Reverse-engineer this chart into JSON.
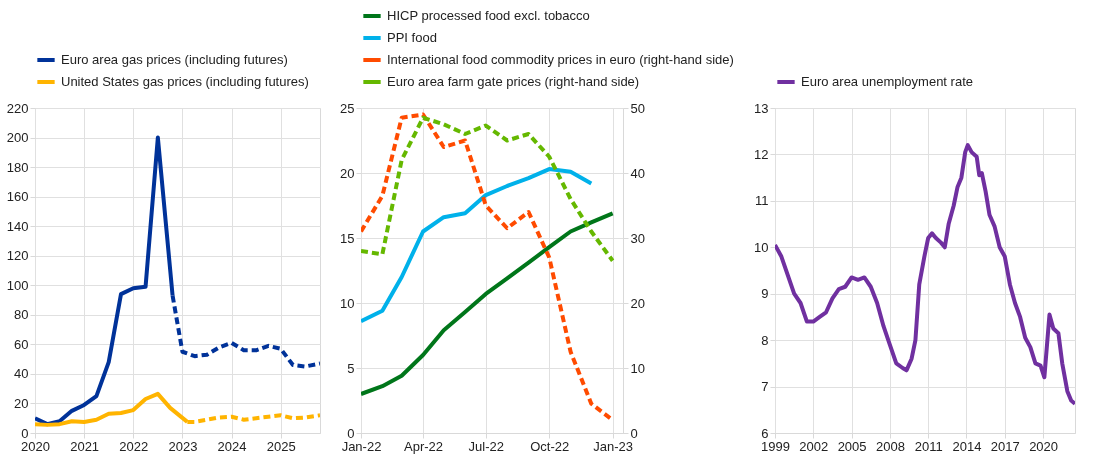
{
  "chart_data": [
    {
      "type": "line",
      "xlim": [
        2020,
        2025.8
      ],
      "xticks": [
        2020,
        2021,
        2022,
        2023,
        2024,
        2025
      ],
      "ylim": [
        0,
        220
      ],
      "yticks": [
        0,
        20,
        40,
        60,
        80,
        100,
        120,
        140,
        160,
        180,
        200,
        220
      ],
      "grid": true,
      "legend": "top",
      "series": [
        {
          "name": "Euro area gas prices (including futures)",
          "color": "#003299",
          "x": [
            2020,
            2020.25,
            2020.5,
            2020.75,
            2021,
            2021.25,
            2021.5,
            2021.75,
            2022,
            2022.25,
            2022.5,
            2022.8
          ],
          "values": [
            10,
            6,
            8,
            15,
            19,
            25,
            48,
            94,
            98,
            99,
            200,
            93
          ]
        },
        {
          "color": "#003299",
          "line_style": "dashed",
          "x": [
            2022.8,
            2023,
            2023.25,
            2023.5,
            2023.75,
            2024,
            2024.25,
            2024.5,
            2024.75,
            2025,
            2025.25,
            2025.5,
            2025.8
          ],
          "values": [
            93,
            55,
            52,
            53,
            58,
            61,
            56,
            56,
            59,
            57,
            46,
            45,
            47
          ]
        },
        {
          "name": "United States gas prices (including futures)",
          "color": "#ffb400",
          "x": [
            2020,
            2020.25,
            2020.5,
            2020.75,
            2021,
            2021.25,
            2021.5,
            2021.75,
            2022,
            2022.25,
            2022.5,
            2022.75,
            2023.1
          ],
          "values": [
            6,
            5.5,
            6,
            8,
            7.5,
            9,
            13,
            13.5,
            15.5,
            23,
            26.5,
            17,
            7.5
          ]
        },
        {
          "color": "#ffb400",
          "line_style": "dashed",
          "x": [
            2023.1,
            2023.25,
            2023.5,
            2023.75,
            2024,
            2024.25,
            2024.5,
            2024.75,
            2025,
            2025.25,
            2025.5,
            2025.8
          ],
          "values": [
            7.5,
            7.5,
            9,
            10.5,
            11,
            9,
            10,
            11,
            12,
            10,
            10.5,
            12
          ]
        }
      ]
    },
    {
      "type": "line",
      "x": [
        "2022-01",
        "2022-02",
        "2022-03",
        "2022-04",
        "2022-05",
        "2022-06",
        "2022-07",
        "2022-08",
        "2022-09",
        "2022-10",
        "2022-11",
        "2022-12",
        "2023-01"
      ],
      "xlim": [
        "2022-01",
        "2023-01-16"
      ],
      "xticks": [
        {
          "value": "2022-01",
          "label": "Jan-22"
        },
        {
          "value": "2022-04",
          "label": "Apr-22"
        },
        {
          "value": "2022-07",
          "label": "Jul-22"
        },
        {
          "value": "2022-10",
          "label": "Oct-22"
        },
        {
          "value": "2023-01",
          "label": "Jan-23"
        }
      ],
      "ylim": [
        0,
        25
      ],
      "yticks": [
        0,
        5,
        10,
        15,
        20,
        25
      ],
      "y2lim": [
        0,
        50
      ],
      "y2ticks": [
        0,
        10,
        20,
        30,
        40,
        50
      ],
      "grid": true,
      "legend": "top",
      "series": [
        {
          "name": "HICP processed food excl. tobacco",
          "color": "#00761a",
          "values": [
            3.0,
            3.6,
            4.4,
            6.0,
            7.9,
            9.3,
            10.7,
            11.9,
            13.1,
            14.3,
            15.5,
            16.2,
            16.9
          ]
        },
        {
          "name": "PPI food",
          "color": "#00b1ea",
          "values": [
            8.6,
            9.4,
            12,
            15.5,
            16.6,
            16.9,
            18.3,
            19.0,
            19.6,
            20.3,
            20.1,
            19.2,
            null
          ]
        },
        {
          "name": "International food commodity prices in euro (right-hand side)",
          "color": "#ff4b00",
          "axis": "y2",
          "line_style": "dashed",
          "values": [
            31,
            36.5,
            48.5,
            49,
            44,
            45,
            35,
            31.5,
            34,
            27,
            12.5,
            4.5,
            2
          ]
        },
        {
          "name": "Euro area farm gate prices (right-hand side)",
          "color": "#65b800",
          "axis": "y2",
          "line_style": "dashed",
          "values": [
            28,
            27.5,
            42,
            48.5,
            47.5,
            46,
            47.3,
            45,
            46,
            42.5,
            36,
            31,
            26.5
          ]
        }
      ]
    },
    {
      "type": "line",
      "xlim": [
        1999,
        2022.5
      ],
      "xticks": [
        1999,
        2002,
        2005,
        2008,
        2011,
        2014,
        2017,
        2020
      ],
      "ylim": [
        6,
        13
      ],
      "yticks": [
        6,
        7,
        8,
        9,
        10,
        11,
        12,
        13
      ],
      "grid": true,
      "legend": "top",
      "series": [
        {
          "name": "Euro area unemployment rate",
          "color": "#7030a0",
          "x": [
            1999,
            1999.5,
            2000,
            2000.5,
            2001,
            2001.5,
            2002,
            2002.5,
            2003,
            2003.5,
            2004,
            2004.5,
            2005,
            2005.5,
            2006,
            2006.5,
            2007,
            2007.5,
            2008,
            2008.5,
            2009,
            2009.3,
            2009.7,
            2010,
            2010.3,
            2010.7,
            2011,
            2011.3,
            2011.6,
            2012,
            2012.3,
            2012.6,
            2013,
            2013.3,
            2013.6,
            2013.9,
            2014.1,
            2014.4,
            2014.8,
            2015,
            2015.2,
            2015.5,
            2015.8,
            2016.2,
            2016.6,
            2017,
            2017.4,
            2017.8,
            2018.2,
            2018.6,
            2019,
            2019.4,
            2019.8,
            2020.1,
            2020.5,
            2020.8,
            2021.2,
            2021.5,
            2021.9,
            2022.2,
            2022.5
          ],
          "values": [
            10.05,
            9.8,
            9.4,
            9.0,
            8.8,
            8.4,
            8.4,
            8.5,
            8.6,
            8.9,
            9.1,
            9.15,
            9.35,
            9.3,
            9.35,
            9.15,
            8.8,
            8.3,
            7.9,
            7.5,
            7.4,
            7.35,
            7.6,
            8.0,
            9.2,
            9.8,
            10.2,
            10.3,
            10.2,
            10.1,
            10.0,
            10.5,
            10.9,
            11.3,
            11.5,
            12.05,
            12.2,
            12.05,
            11.95,
            11.55,
            11.6,
            11.2,
            10.7,
            10.45,
            10.0,
            9.8,
            9.2,
            8.8,
            8.5,
            8.05,
            7.85,
            7.5,
            7.45,
            7.2,
            8.55,
            8.25,
            8.15,
            7.5,
            6.9,
            6.7,
            6.63
          ]
        }
      ]
    }
  ]
}
